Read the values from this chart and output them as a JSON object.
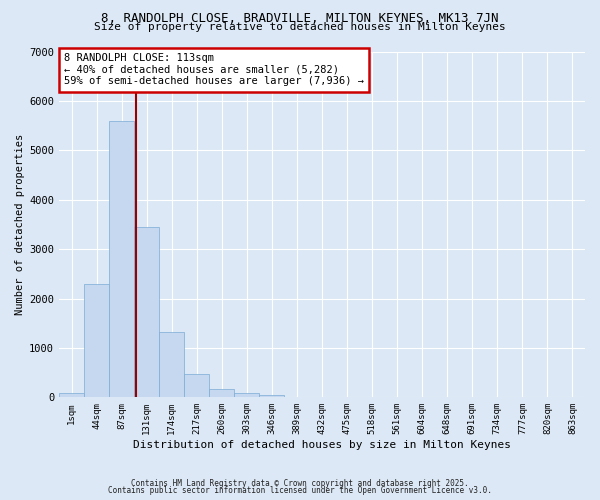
{
  "title1": "8, RANDOLPH CLOSE, BRADVILLE, MILTON KEYNES, MK13 7JN",
  "title2": "Size of property relative to detached houses in Milton Keynes",
  "xlabel": "Distribution of detached houses by size in Milton Keynes",
  "ylabel": "Number of detached properties",
  "bin_labels": [
    "1sqm",
    "44sqm",
    "87sqm",
    "131sqm",
    "174sqm",
    "217sqm",
    "260sqm",
    "303sqm",
    "346sqm",
    "389sqm",
    "432sqm",
    "475sqm",
    "518sqm",
    "561sqm",
    "604sqm",
    "648sqm",
    "691sqm",
    "734sqm",
    "777sqm",
    "820sqm",
    "863sqm"
  ],
  "bar_values": [
    80,
    2300,
    5600,
    3450,
    1320,
    480,
    175,
    80,
    45,
    0,
    0,
    0,
    0,
    0,
    0,
    0,
    0,
    0,
    0,
    0,
    0
  ],
  "bar_color": "#c5d8f0",
  "bar_edge_color": "#7aacd4",
  "background_color": "#dce8f5",
  "grid_color": "#ffffff",
  "vline_x": 2.57,
  "vline_color": "#990000",
  "annotation_text": "8 RANDOLPH CLOSE: 113sqm\n← 40% of detached houses are smaller (5,282)\n59% of semi-detached houses are larger (7,936) →",
  "annotation_box_facecolor": "#ffffff",
  "annotation_box_edge": "#cc0000",
  "ylim": [
    0,
    7000
  ],
  "yticks": [
    0,
    1000,
    2000,
    3000,
    4000,
    5000,
    6000,
    7000
  ],
  "footer1": "Contains HM Land Registry data © Crown copyright and database right 2025.",
  "footer2": "Contains public sector information licensed under the Open Government Licence v3.0."
}
